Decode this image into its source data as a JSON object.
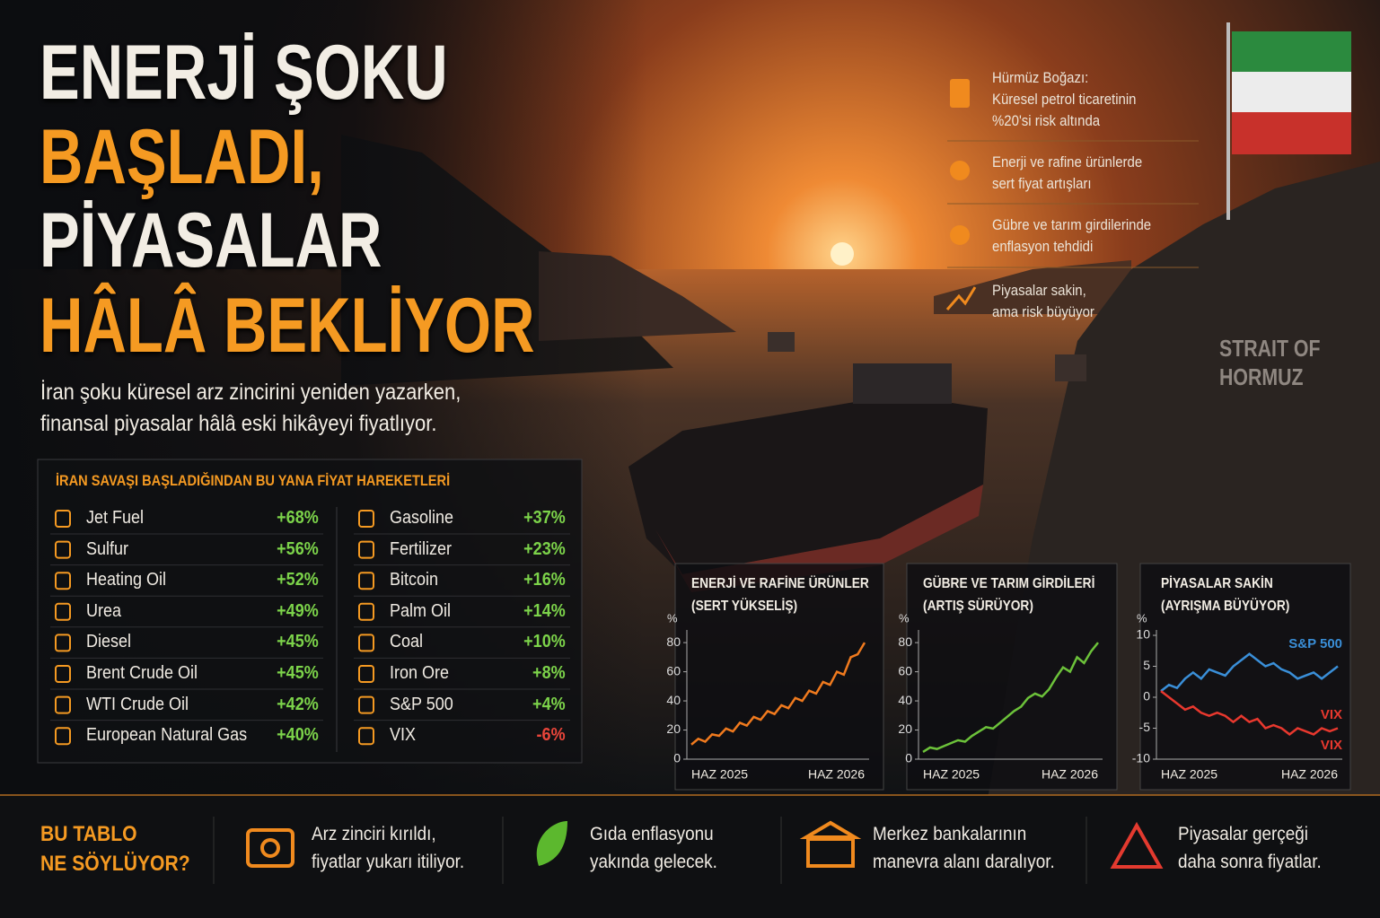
{
  "headline": {
    "line1": "ENERJİ ŞOKU",
    "line2": "BAŞLADI,",
    "line3": "PİYASALAR",
    "line4": "HÂLÂ BEKLİYOR"
  },
  "subtitle": [
    "İran şoku küresel arz zincirini yeniden yazarken,",
    "finansal piyasalar hâlâ eski hikâyeyi fiyatlıyor."
  ],
  "side_notes": [
    [
      "Hürmüz Boğazı:",
      "Küresel petrol ticaretinin",
      "%20'si risk altında"
    ],
    [
      "Enerji ve rafine ürünlerde",
      "sert fiyat artışları"
    ],
    [
      "Gübre ve tarım girdilerinde",
      "enflasyon tehdidi"
    ],
    [
      "Piyasalar sakin,",
      "ama risk büyüyor"
    ]
  ],
  "map_label": [
    "STRAIT OF",
    "HORMUZ"
  ],
  "table": {
    "title": "İRAN SAVAŞI BAŞLADIĞINDAN BU YANA FİYAT HAREKETLERİ",
    "columns": [
      [
        [
          "Jet Fuel",
          "+68%"
        ],
        [
          "Sulfur",
          "+56%"
        ],
        [
          "Heating Oil",
          "+52%"
        ],
        [
          "Urea",
          "+49%"
        ],
        [
          "Diesel",
          "+45%"
        ],
        [
          "Brent Crude Oil",
          "+45%"
        ],
        [
          "WTI Crude Oil",
          "+42%"
        ],
        [
          "European Natural Gas",
          "+40%"
        ]
      ],
      [
        [
          "Gasoline",
          "+37%"
        ],
        [
          "Fertilizer",
          "+23%"
        ],
        [
          "Bitcoin",
          "+16%"
        ],
        [
          "Palm Oil",
          "+14%"
        ],
        [
          "Coal",
          "+10%"
        ],
        [
          "Iron Ore",
          "+8%"
        ],
        [
          "S&P 500",
          "+4%"
        ],
        [
          "VIX",
          "-6%"
        ]
      ]
    ]
  },
  "chart_data": [
    {
      "type": "line",
      "title": "ENERJİ VE RAFİNE ÜRÜNLER",
      "subtitle": "(SERT YÜKSELİŞ)",
      "y_label": "%",
      "color": "#f07a1e",
      "categories": [
        "HAZ 2025",
        null,
        null,
        null,
        null,
        null,
        null,
        null,
        null,
        null,
        null,
        null,
        null,
        null,
        null,
        null,
        null,
        null,
        null,
        null,
        null,
        null,
        null,
        null,
        null,
        "HAZ 2026"
      ],
      "values": [
        10,
        14,
        12,
        17,
        16,
        21,
        19,
        25,
        23,
        29,
        27,
        33,
        31,
        37,
        35,
        42,
        40,
        47,
        45,
        53,
        51,
        60,
        58,
        70,
        72,
        80
      ],
      "ylim": [
        0,
        85
      ],
      "yticks": [
        0,
        20,
        40,
        60,
        80
      ]
    },
    {
      "type": "line",
      "title": "GÜBRE VE TARIM GİRDİLERİ",
      "subtitle": "(ARTIŞ SÜRÜYOR)",
      "y_label": "%",
      "color": "#6cc23a",
      "categories": [
        "HAZ 2025",
        null,
        null,
        null,
        null,
        null,
        null,
        null,
        null,
        null,
        null,
        null,
        null,
        null,
        null,
        null,
        null,
        null,
        null,
        null,
        null,
        null,
        null,
        null,
        null,
        "HAZ 2026"
      ],
      "values": [
        5,
        8,
        7,
        9,
        11,
        13,
        12,
        16,
        19,
        22,
        21,
        25,
        29,
        33,
        36,
        42,
        45,
        43,
        48,
        56,
        63,
        60,
        70,
        66,
        74,
        80
      ],
      "ylim": [
        0,
        85
      ],
      "yticks": [
        0,
        20,
        40,
        60,
        80
      ]
    },
    {
      "type": "line",
      "title": "PİYASALAR SAKİN",
      "subtitle": "(AYRIŞMA BÜYÜYOR)",
      "y_label": "%",
      "categories": [
        "HAZ 2025",
        null,
        null,
        null,
        null,
        null,
        null,
        null,
        null,
        null,
        null,
        null,
        null,
        null,
        null,
        null,
        null,
        null,
        null,
        null,
        null,
        null,
        "HAZ 2026"
      ],
      "series": [
        {
          "name": "S&P 500",
          "color": "#3a8fd8",
          "values": [
            1,
            2,
            1.5,
            3,
            4,
            3,
            4.5,
            4,
            3.5,
            5,
            6,
            7,
            6,
            5,
            5.5,
            4.5,
            4,
            3,
            3.5,
            4,
            3,
            4,
            5
          ]
        },
        {
          "name": "VIX",
          "color": "#e8382e",
          "values": [
            1,
            0,
            -1,
            -2,
            -1.5,
            -2.5,
            -3,
            -2.5,
            -3,
            -4,
            -3,
            -4,
            -3.5,
            -5,
            -4.5,
            -5,
            -6,
            -5,
            -5.5,
            -6,
            -5,
            -5.5,
            -5
          ]
        }
      ],
      "ylim": [
        -10,
        10
      ],
      "yticks": [
        -10,
        -5,
        0,
        5,
        10
      ]
    }
  ],
  "footer": {
    "title": [
      "BU TABLO",
      "NE SÖYLÜYOR?"
    ],
    "items": [
      [
        "Arz zinciri kırıldı,",
        "fiyatlar yukarı itiliyor."
      ],
      [
        "Gıda enflasyonu",
        "yakında gelecek."
      ],
      [
        "Merkez bankalarının",
        "manevra alanı daralıyor."
      ],
      [
        "Piyasalar gerçeği",
        "daha sonra fiyatlar."
      ]
    ]
  }
}
